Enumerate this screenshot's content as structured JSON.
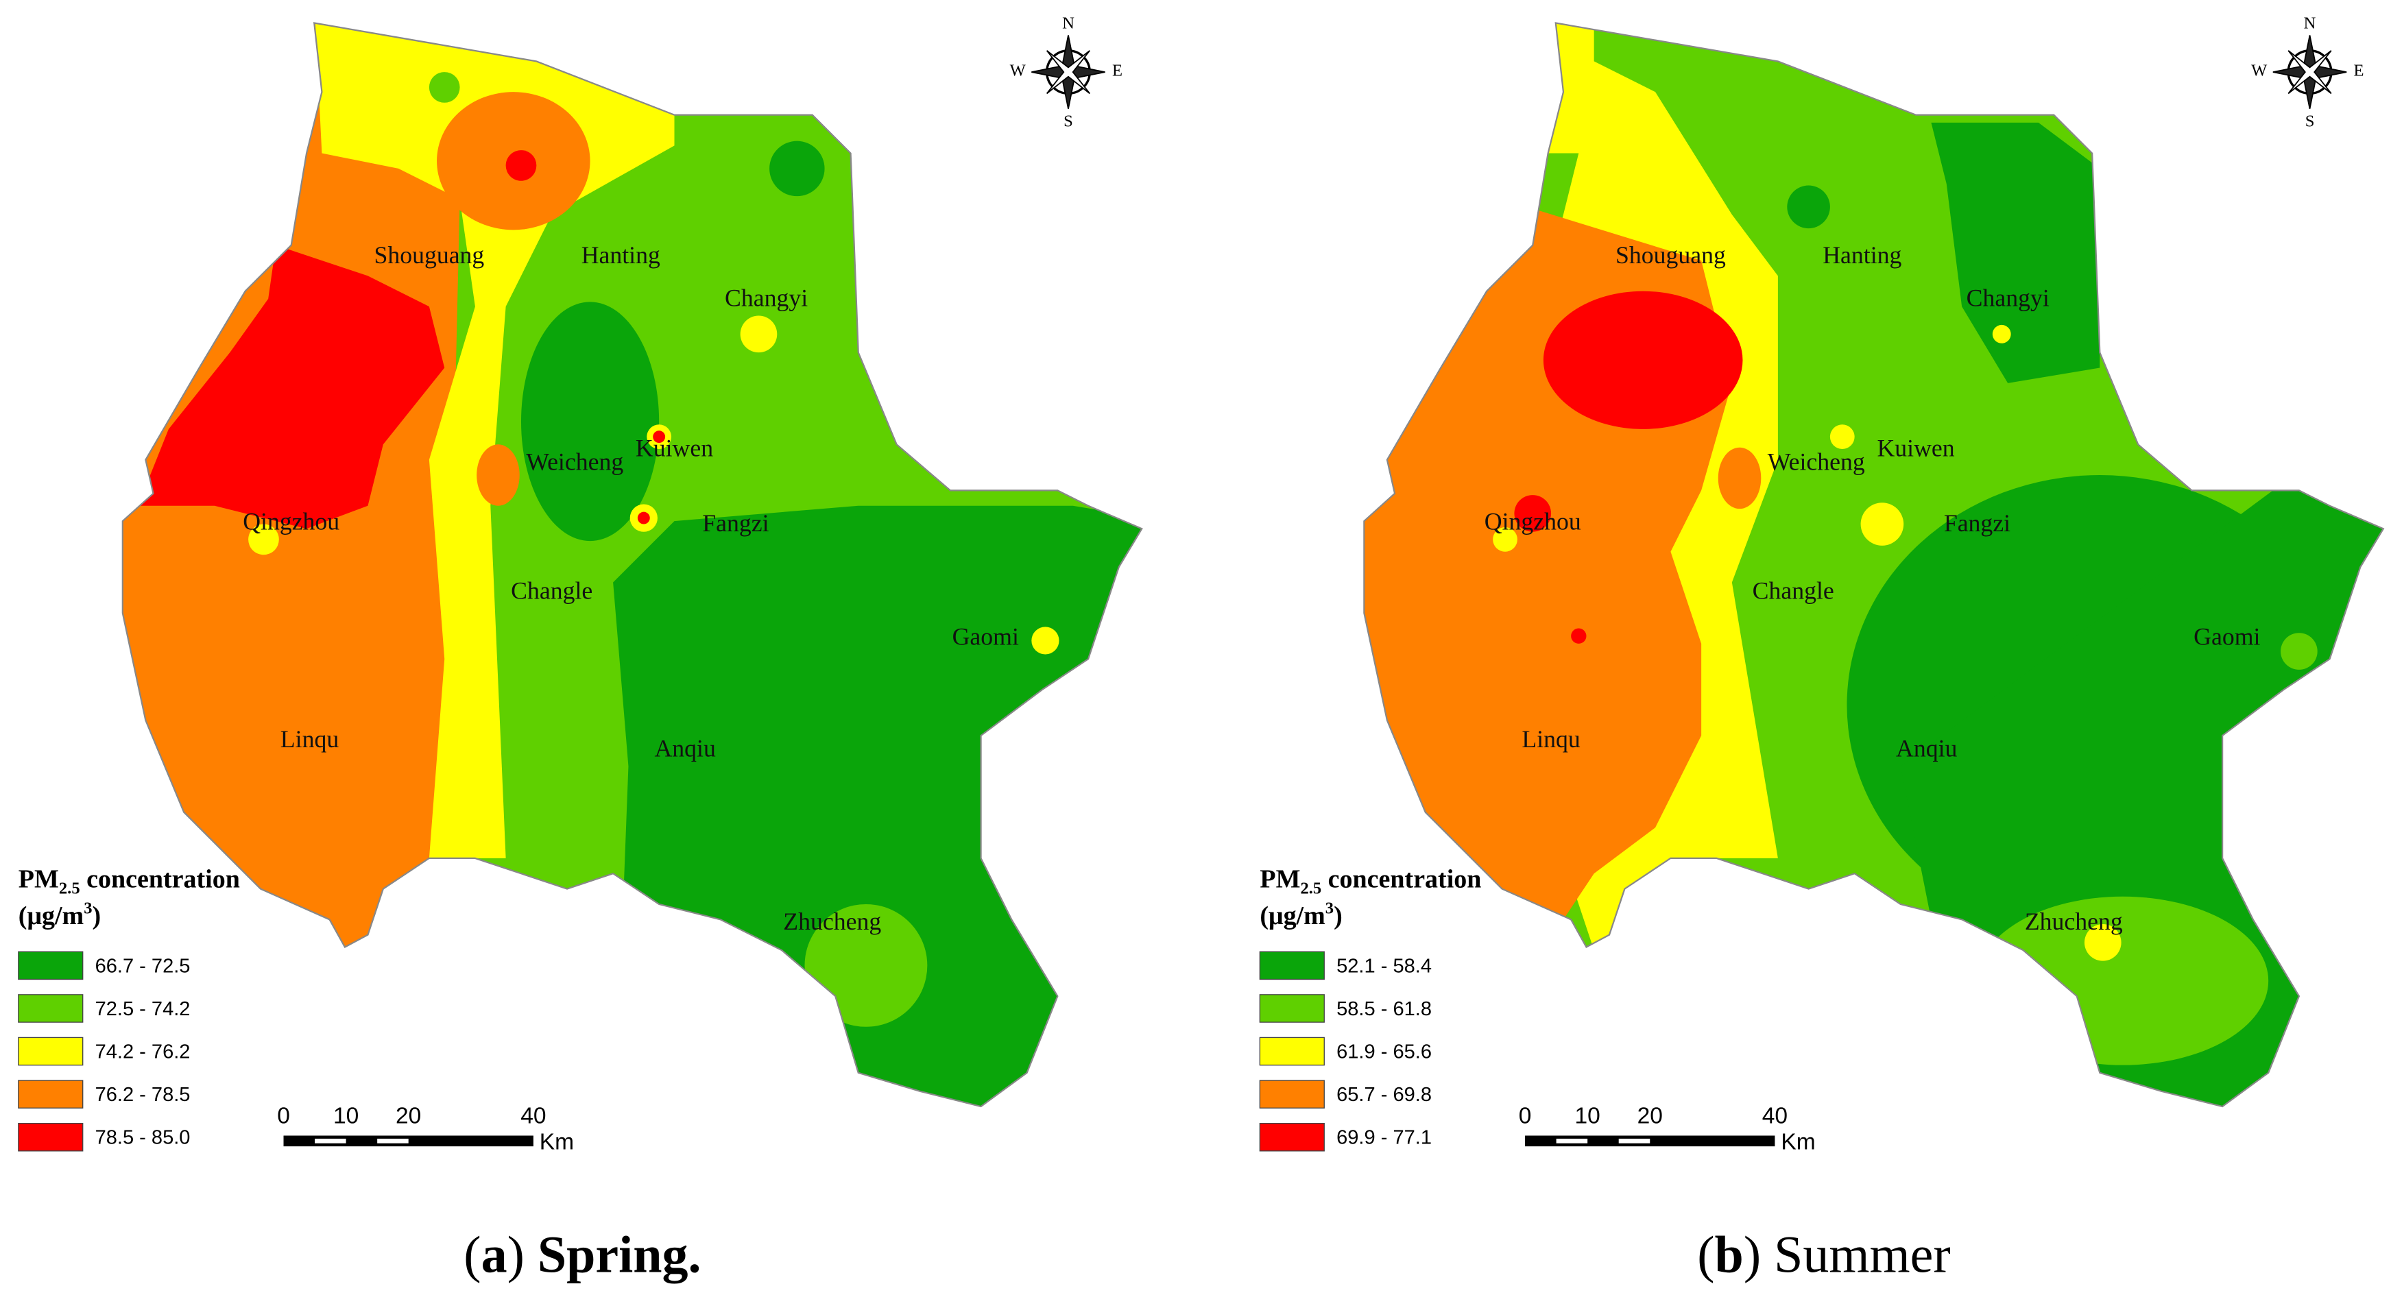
{
  "panels": [
    {
      "places": [
        "Shouguang",
        "Hanting",
        "Changyi",
        "Kuiwen",
        "Weicheng",
        "Qingzhou",
        "Fangzi",
        "Changle",
        "Gaomi",
        "Linqu",
        "Anqiu",
        "Zhucheng"
      ],
      "legend": {
        "title": {
          "pm": "PM",
          "sub": "2.5",
          "rest": " concentration",
          "unit": "(μg/m",
          "sup": "3",
          "close": ")"
        },
        "entries": [
          "66.7 - 72.5",
          "72.5 - 74.2",
          "74.2 - 76.2",
          "76.2 - 78.5",
          "78.5 - 85.0"
        ],
        "colors": [
          "#0aa50a",
          "#5fd000",
          "#ffff00",
          "#ff8000",
          "#ff0000"
        ]
      },
      "scale": {
        "ticks": [
          0,
          10,
          20,
          40
        ],
        "unit": "Km"
      },
      "compass": {
        "n": "N",
        "s": "S",
        "w": "W",
        "e": "E"
      },
      "caption": [
        {
          "text": "(",
          "bold": false
        },
        {
          "text": "a",
          "bold": true
        },
        {
          "text": ") ",
          "bold": false
        },
        {
          "text": "Spring.",
          "bold": true
        }
      ]
    },
    {
      "places": [
        "Shouguang",
        "Hanting",
        "Changyi",
        "Kuiwen",
        "Weicheng",
        "Qingzhou",
        "Fangzi",
        "Changle",
        "Gaomi",
        "Linqu",
        "Anqiu",
        "Zhucheng"
      ],
      "legend": {
        "title": {
          "pm": "PM",
          "sub": "2.5",
          "rest": " concentration",
          "unit": "(μg/m",
          "sup": "3",
          "close": ")"
        },
        "entries": [
          "52.1 - 58.4",
          "58.5 - 61.8",
          "61.9 - 65.6",
          "65.7 - 69.8",
          "69.9 - 77.1"
        ],
        "colors": [
          "#0aa50a",
          "#5fd000",
          "#ffff00",
          "#ff8000",
          "#ff0000"
        ]
      },
      "scale": {
        "ticks": [
          0,
          10,
          20,
          40
        ],
        "unit": "Km"
      },
      "compass": {
        "n": "N",
        "s": "S",
        "w": "W",
        "e": "E"
      },
      "caption": [
        {
          "text": "(",
          "bold": false
        },
        {
          "text": "b",
          "bold": true
        },
        {
          "text": ") ",
          "bold": false
        },
        {
          "text": "Summer",
          "bold": false
        }
      ]
    }
  ]
}
